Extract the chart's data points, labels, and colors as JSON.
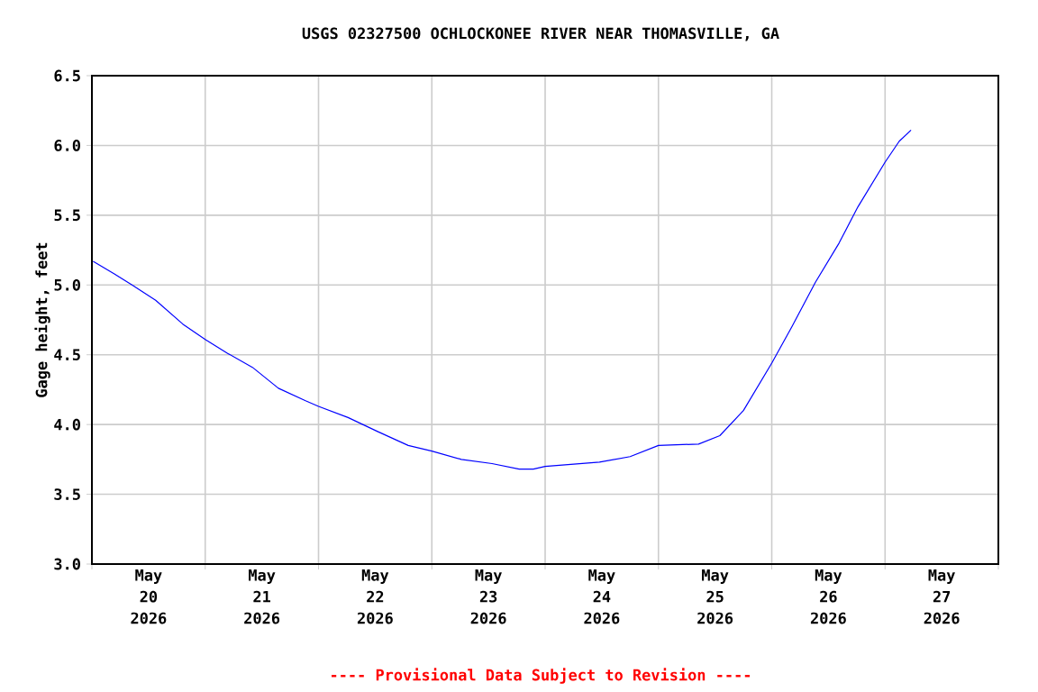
{
  "chart_data": {
    "type": "line",
    "title": "USGS 02327500 OCHLOCKONEE RIVER NEAR THOMASVILLE, GA",
    "ylabel": "Gage height, feet",
    "annotations": [
      "---- Provisional Data Subject to Revision ----"
    ],
    "x": [
      "2026-05-20T00:15",
      "2026-05-20T04:45",
      "2026-05-20T08:30",
      "2026-05-20T13:30",
      "2026-05-20T19:15",
      "2026-05-21T00:00",
      "2026-05-21T04:45",
      "2026-05-21T10:00",
      "2026-05-21T15:30",
      "2026-05-21T21:15",
      "2026-05-22T00:00",
      "2026-05-22T06:15",
      "2026-05-22T12:30",
      "2026-05-22T19:00",
      "2026-05-23T00:00",
      "2026-05-23T06:15",
      "2026-05-23T12:45",
      "2026-05-23T18:30",
      "2026-05-23T21:30",
      "2026-05-24T00:00",
      "2026-05-24T11:30",
      "2026-05-24T18:00",
      "2026-05-25T00:00",
      "2026-05-25T08:30",
      "2026-05-25T13:00",
      "2026-05-25T18:00",
      "2026-05-26T00:00",
      "2026-05-26T04:15",
      "2026-05-26T09:15",
      "2026-05-26T14:15",
      "2026-05-26T18:15",
      "2026-05-27T00:00",
      "2026-05-27T03:00",
      "2026-05-27T05:30"
    ],
    "values": [
      5.17,
      5.08,
      5.0,
      4.89,
      4.72,
      4.61,
      4.51,
      4.41,
      4.26,
      4.17,
      4.13,
      4.05,
      3.95,
      3.85,
      3.81,
      3.75,
      3.72,
      3.68,
      3.68,
      3.7,
      3.73,
      3.77,
      3.85,
      3.86,
      3.92,
      4.1,
      4.44,
      4.7,
      5.02,
      5.3,
      5.56,
      5.88,
      6.03,
      6.11
    ],
    "color": "#0000ff",
    "xlim": [
      "2026-05-20T00:00",
      "2026-05-28T00:00"
    ],
    "xticks": [
      {
        "value": "2026-05-20T00:00",
        "label": null
      },
      {
        "value": "2026-05-21T00:00",
        "label": null
      },
      {
        "value": "2026-05-22T00:00",
        "label": null
      },
      {
        "value": "2026-05-23T00:00",
        "label": null
      },
      {
        "value": "2026-05-24T00:00",
        "label": null
      },
      {
        "value": "2026-05-25T00:00",
        "label": null
      },
      {
        "value": "2026-05-26T00:00",
        "label": null
      },
      {
        "value": "2026-05-27T00:00",
        "label": null
      },
      {
        "value": "2026-05-28T00:00",
        "label": null
      },
      {
        "value": "2026-05-20T12:00",
        "label": "May 20 2026"
      },
      {
        "value": "2026-05-21T12:00",
        "label": "May 21 2026"
      },
      {
        "value": "2026-05-22T12:00",
        "label": "May 22 2026"
      },
      {
        "value": "2026-05-23T12:00",
        "label": "May 23 2026"
      },
      {
        "value": "2026-05-24T12:00",
        "label": "May 24 2026"
      },
      {
        "value": "2026-05-25T12:00",
        "label": "May 25 2026"
      },
      {
        "value": "2026-05-26T12:00",
        "label": "May 26 2026"
      },
      {
        "value": "2026-05-27T12:00",
        "label": "May 27 2026"
      }
    ],
    "ylim": [
      3.0,
      6.5
    ],
    "yticks": [
      {
        "value": 3.0,
        "label": "3.0"
      },
      3.5,
      {
        "value": 4.0,
        "label": "4.0"
      },
      4.5,
      {
        "value": 5.0,
        "label": "5.0"
      },
      5.5,
      {
        "value": 6.0,
        "label": "6.0"
      },
      6.5
    ],
    "grid": true,
    "marker": "none",
    "line_style": "solid"
  }
}
